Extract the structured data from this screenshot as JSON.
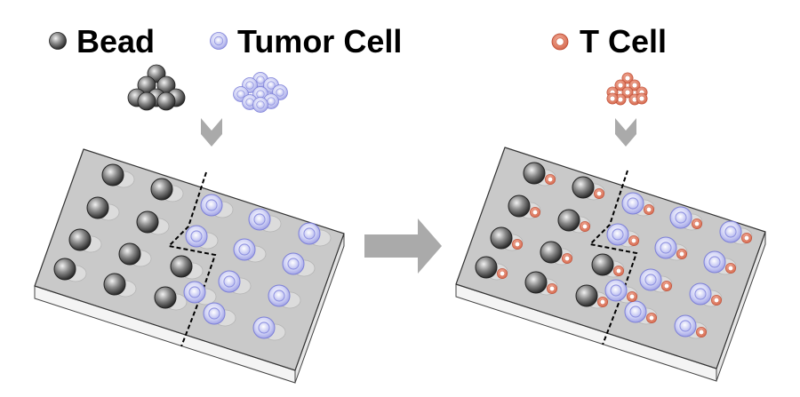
{
  "legend": {
    "bead": {
      "label": "Bead"
    },
    "tumor": {
      "label": "Tumor Cell"
    },
    "tcell": {
      "label": "T Cell"
    }
  },
  "plates": {
    "left": {
      "wells": 21,
      "bead_wells": 10,
      "tumor_wells": 11,
      "tcells_added": false
    },
    "right": {
      "wells": 21,
      "bead_wells": 10,
      "tumor_wells": 11,
      "tcells_added": true
    }
  },
  "colors": {
    "bead": "#3a3a3a",
    "tumor_outer": "#9c9ce6",
    "tumor_inner": "#c9cbf0",
    "tcell_ring": "#d9654a",
    "plate_top": "#c8c8c8",
    "arrow": "#aaaaaa"
  },
  "icons": [
    "bead-icon",
    "tumor-cell-icon",
    "t-cell-icon",
    "down-arrow-icon",
    "right-arrow-icon"
  ]
}
